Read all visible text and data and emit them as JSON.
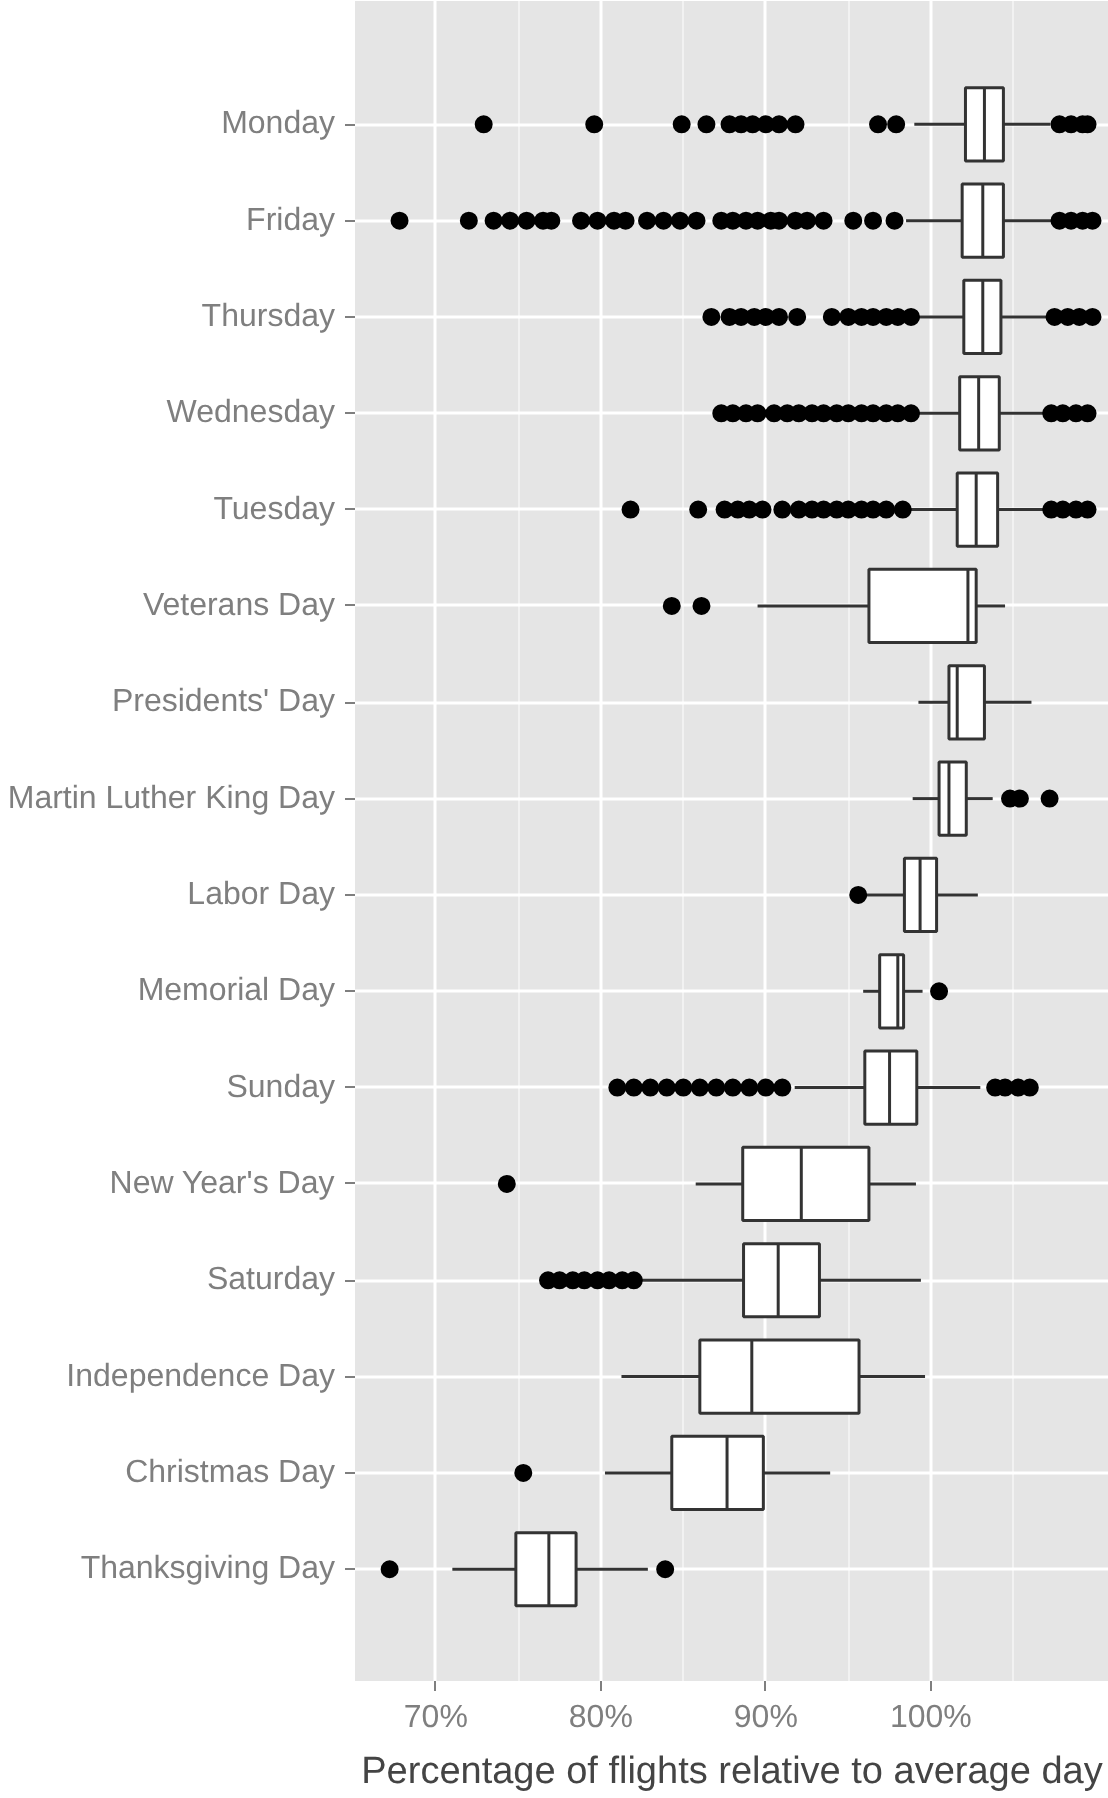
{
  "chart_data": {
    "type": "box",
    "orientation": "horizontal",
    "xlabel": "Percentage of flights relative to average day",
    "categories": [
      "Monday",
      "Friday",
      "Thursday",
      "Wednesday",
      "Tuesday",
      "Veterans Day",
      "Presidents' Day",
      "Martin Luther King Day",
      "Labor Day",
      "Memorial Day",
      "Sunday",
      "New Year's Day",
      "Saturday",
      "Independence Day",
      "Christmas Day",
      "Thanksgiving Day"
    ],
    "xlim": [
      65.1,
      110.8
    ],
    "xticks": [
      {
        "value": 70,
        "label": "70%"
      },
      {
        "value": 80,
        "label": "80%"
      },
      {
        "value": 90,
        "label": "90%"
      },
      {
        "value": 100,
        "label": "100%"
      }
    ],
    "grid": true,
    "color": "#ffffff",
    "boxes": [
      {
        "low": 99,
        "q1": 102.1,
        "median": 103.25,
        "q3": 104.4,
        "high": 107.25,
        "outliers": [
          72.9,
          79.6,
          84.9,
          86.4,
          87.8,
          88.5,
          89.2,
          90,
          90.8,
          91.8,
          96.8,
          97.9,
          107.8,
          108.5,
          109.2,
          109.5
        ]
      },
      {
        "low": 98.5,
        "q1": 101.9,
        "median": 103.15,
        "q3": 104.4,
        "high": 107.5,
        "outliers": [
          67.8,
          72,
          73.5,
          74.5,
          75.5,
          76.5,
          77,
          78.8,
          79.8,
          80.8,
          81.5,
          82.8,
          83.8,
          84.8,
          85.8,
          87.3,
          88,
          88.8,
          89.5,
          90.3,
          90.8,
          91.8,
          92.5,
          93.5,
          95.3,
          96.5,
          97.8,
          107.8,
          108.5,
          109.2,
          109.8
        ]
      },
      {
        "low": 99,
        "q1": 102,
        "median": 103.15,
        "q3": 104.25,
        "high": 107,
        "outliers": [
          86.7,
          87.8,
          88.5,
          89.3,
          90,
          90.8,
          91.9,
          94,
          95,
          95.8,
          96.5,
          97.3,
          98,
          98.8,
          107.5,
          108.3,
          109,
          109.8
        ]
      },
      {
        "low": 98.85,
        "q1": 101.75,
        "median": 102.9,
        "q3": 104.15,
        "high": 106.9,
        "outliers": [
          87.3,
          88,
          88.8,
          89.5,
          90.5,
          91.3,
          92,
          92.8,
          93.5,
          94.3,
          95,
          95.8,
          96.5,
          97.3,
          98,
          98.8,
          107.3,
          108,
          108.8,
          109.5
        ]
      },
      {
        "low": 98.5,
        "q1": 101.6,
        "median": 102.75,
        "q3": 104.05,
        "high": 107,
        "outliers": [
          81.8,
          85.9,
          87.5,
          88.3,
          89,
          89.8,
          91,
          92,
          92.8,
          93.5,
          94.3,
          95,
          95.8,
          96.5,
          97.3,
          98.3,
          107.3,
          108,
          108.8,
          109.5
        ]
      },
      {
        "low": 89.5,
        "q1": 96.25,
        "median": 102.25,
        "q3": 102.75,
        "high": 104.5,
        "outliers": [
          84.3,
          86.1
        ]
      },
      {
        "low": 99.25,
        "q1": 101.1,
        "median": 101.6,
        "q3": 103.25,
        "high": 106.1
      },
      {
        "low": 98.9,
        "q1": 100.5,
        "median": 101.1,
        "q3": 102.15,
        "high": 103.75,
        "outliers": [
          104.8,
          105.4,
          107.2
        ]
      },
      {
        "low": 96,
        "q1": 98.4,
        "median": 99.35,
        "q3": 100.35,
        "high": 102.85,
        "outliers": [
          95.6
        ]
      },
      {
        "low": 95.9,
        "q1": 96.9,
        "median": 98,
        "q3": 98.35,
        "high": 99.5,
        "outliers": [
          100.5
        ]
      },
      {
        "low": 91.75,
        "q1": 96,
        "median": 97.5,
        "q3": 99.15,
        "high": 103,
        "outliers": [
          81,
          82,
          83,
          84,
          85,
          86,
          87,
          88,
          89,
          90,
          91,
          103.9,
          104.5,
          105.3,
          106
        ]
      },
      {
        "low": 85.75,
        "q1": 88.6,
        "median": 92.15,
        "q3": 96.25,
        "high": 99.1,
        "outliers": [
          74.3
        ]
      },
      {
        "low": 82.3,
        "q1": 88.65,
        "median": 90.75,
        "q3": 93.25,
        "high": 99.4,
        "outliers": [
          76.8,
          77.5,
          78.3,
          79,
          79.8,
          80.5,
          81.3,
          82
        ]
      },
      {
        "low": 81.25,
        "q1": 86,
        "median": 89.15,
        "q3": 95.65,
        "high": 99.65
      },
      {
        "low": 80.25,
        "q1": 84.3,
        "median": 87.65,
        "q3": 89.85,
        "high": 93.9,
        "outliers": [
          75.3
        ]
      },
      {
        "low": 71,
        "q1": 74.85,
        "median": 76.85,
        "q3": 78.5,
        "high": 82.85,
        "outliers": [
          67.2,
          83.9
        ]
      }
    ]
  }
}
